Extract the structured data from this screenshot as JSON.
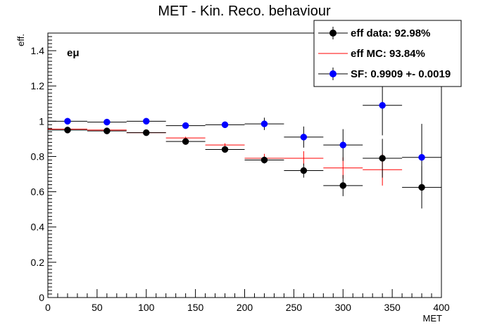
{
  "chart_data": {
    "type": "scatter",
    "title": "MET - Kin. Reco. behaviour",
    "xlabel": "MET",
    "ylabel": "eff.",
    "annotation": "eμ",
    "xlim": [
      0,
      400
    ],
    "ylim": [
      0,
      1.5
    ],
    "x_ticks": [
      "0",
      "50",
      "100",
      "150",
      "200",
      "250",
      "300",
      "350",
      "400"
    ],
    "y_ticks": [
      "0",
      "0.2",
      "0.4",
      "0.6",
      "0.8",
      "1",
      "1.2",
      "1.4"
    ],
    "grid": false,
    "legend_position": "top-right",
    "series": [
      {
        "name": "eff MC: 93.84%",
        "style": "error-cross",
        "color": "#ff0000",
        "bins": [
          {
            "xlow": 0,
            "xhigh": 40,
            "y": 0.955,
            "err": 0.004
          },
          {
            "xlow": 40,
            "xhigh": 80,
            "y": 0.95,
            "err": 0.004
          },
          {
            "xlow": 80,
            "xhigh": 120,
            "y": 0.935,
            "err": 0.005
          },
          {
            "xlow": 120,
            "xhigh": 160,
            "y": 0.905,
            "err": 0.007
          },
          {
            "xlow": 160,
            "xhigh": 200,
            "y": 0.865,
            "err": 0.01
          },
          {
            "xlow": 200,
            "xhigh": 240,
            "y": 0.79,
            "err": 0.025
          },
          {
            "xlow": 240,
            "xhigh": 280,
            "y": 0.79,
            "err": 0.04
          },
          {
            "xlow": 280,
            "xhigh": 320,
            "y": 0.735,
            "err": 0.06
          },
          {
            "xlow": 320,
            "xhigh": 360,
            "y": 0.725,
            "err": 0.09
          }
        ]
      },
      {
        "name": "eff data: 92.98%",
        "style": "marker",
        "color": "#000000",
        "points": [
          {
            "x": 20,
            "xerr": 20,
            "y": 0.95,
            "yerr": 0.008
          },
          {
            "x": 60,
            "xerr": 20,
            "y": 0.945,
            "yerr": 0.008
          },
          {
            "x": 100,
            "xerr": 20,
            "y": 0.935,
            "yerr": 0.01
          },
          {
            "x": 140,
            "xerr": 20,
            "y": 0.885,
            "yerr": 0.012
          },
          {
            "x": 180,
            "xerr": 20,
            "y": 0.84,
            "yerr": 0.015
          },
          {
            "x": 220,
            "xerr": 20,
            "y": 0.78,
            "yerr": 0.02
          },
          {
            "x": 260,
            "xerr": 20,
            "y": 0.72,
            "yerr": 0.04
          },
          {
            "x": 300,
            "xerr": 20,
            "y": 0.635,
            "yerr": 0.06
          },
          {
            "x": 340,
            "xerr": 20,
            "y": 0.79,
            "yerr": 0.11
          },
          {
            "x": 380,
            "xerr": 20,
            "y": 0.625,
            "yerr": 0.12
          }
        ]
      },
      {
        "name": "SF: 0.9909 +- 0.0019",
        "style": "marker",
        "color": "#0000ff",
        "points": [
          {
            "x": 20,
            "xerr": 20,
            "y": 1.0,
            "yerr": 0.008
          },
          {
            "x": 60,
            "xerr": 20,
            "y": 0.995,
            "yerr": 0.008
          },
          {
            "x": 100,
            "xerr": 20,
            "y": 1.0,
            "yerr": 0.01
          },
          {
            "x": 140,
            "xerr": 20,
            "y": 0.975,
            "yerr": 0.014
          },
          {
            "x": 180,
            "xerr": 20,
            "y": 0.98,
            "yerr": 0.018
          },
          {
            "x": 220,
            "xerr": 20,
            "y": 0.985,
            "yerr": 0.035
          },
          {
            "x": 260,
            "xerr": 20,
            "y": 0.91,
            "yerr": 0.06
          },
          {
            "x": 300,
            "xerr": 20,
            "y": 0.865,
            "yerr": 0.09
          },
          {
            "x": 340,
            "xerr": 20,
            "y": 1.09,
            "yerr": 0.17
          },
          {
            "x": 380,
            "xerr": 20,
            "y": 0.795,
            "yerr": 0.19
          }
        ]
      }
    ],
    "legend_order": [
      "eff data: 92.98%",
      "eff MC: 93.84%",
      "SF: 0.9909 +- 0.0019"
    ]
  }
}
